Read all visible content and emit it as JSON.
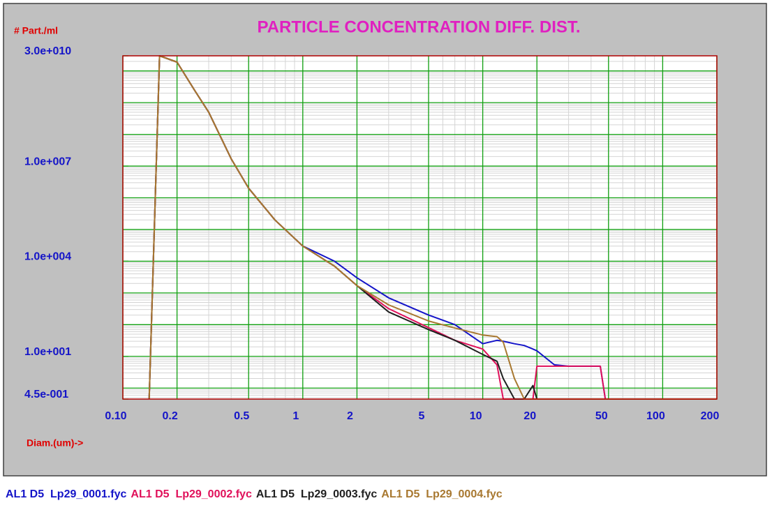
{
  "chart_data": {
    "type": "line",
    "title": "PARTICLE CONCENTRATION DIFF. DIST.",
    "y_label": "# Part./ml",
    "x_label": "Diam.(um)->",
    "log_x": true,
    "log_y": true,
    "grid": true,
    "legend": "bottom",
    "xlim": [
      0.1,
      200
    ],
    "ylim": [
      0.45,
      30000000000
    ],
    "xticks": [
      {
        "value": 0.1,
        "label": "0.10"
      },
      0.2,
      0.5,
      1,
      2,
      5,
      10,
      20,
      50,
      100,
      200
    ],
    "yticks": [
      {
        "value": 30000000000,
        "label": "3.0e+010"
      },
      {
        "value": 10000000,
        "label": "1.0e+007"
      },
      {
        "value": 10000,
        "label": "1.0e+004"
      },
      {
        "value": 10,
        "label": "1.0e+001"
      },
      {
        "value": 0.45,
        "label": "4.5e-001"
      }
    ],
    "x": [
      0.14,
      0.16,
      0.2,
      0.25,
      0.3,
      0.4,
      0.5,
      0.7,
      1,
      1.5,
      2,
      3,
      5,
      7,
      10,
      12,
      13,
      15,
      17,
      19,
      20,
      25,
      30,
      45,
      48,
      50,
      200
    ],
    "series": [
      {
        "name": "AL1 D5  Lp29_0001.fyc",
        "color": "#1414c8",
        "values": [
          0.45,
          30000000000,
          19000000000,
          2500000000,
          500000000,
          17000000,
          2000000,
          200000,
          30000,
          10000,
          3000,
          700,
          200,
          100,
          25,
          32,
          30,
          25,
          22,
          17,
          15,
          5.4,
          4.9,
          4.9,
          0.45,
          0.45,
          0.45
        ]
      },
      {
        "name": "AL1 D5  Lp29_0002.fyc",
        "color": "#e0105a",
        "values": [
          0.45,
          30000000000,
          19000000000,
          2500000000,
          500000000,
          17000000,
          2000000,
          200000,
          30000,
          7000,
          1700,
          320,
          80,
          32,
          17,
          5.4,
          0.45,
          0.45,
          0.45,
          0.45,
          4.9,
          4.9,
          4.9,
          4.9,
          0.45,
          0.45,
          0.45
        ]
      },
      {
        "name": "AL1 D5  Lp29_0003.fyc",
        "color": "#202020",
        "values": [
          0.45,
          30000000000,
          19000000000,
          2500000000,
          500000000,
          17000000,
          2000000,
          200000,
          30000,
          7000,
          1700,
          250,
          70,
          32,
          11.5,
          7,
          2,
          0.45,
          0.45,
          1.2,
          0.45,
          0.45,
          0.45,
          0.45,
          0.45,
          0.45,
          0.45
        ]
      },
      {
        "name": "AL1 D5  Lp29_0004.fyc",
        "color": "#a87830",
        "values": [
          0.45,
          30000000000,
          19000000000,
          2500000000,
          500000000,
          17000000,
          2000000,
          200000,
          30000,
          7000,
          1700,
          420,
          130,
          78,
          47,
          42,
          28,
          2,
          0.45,
          0.45,
          0.45,
          0.45,
          0.45,
          0.45,
          0.45,
          0.45,
          0.45
        ]
      }
    ]
  }
}
